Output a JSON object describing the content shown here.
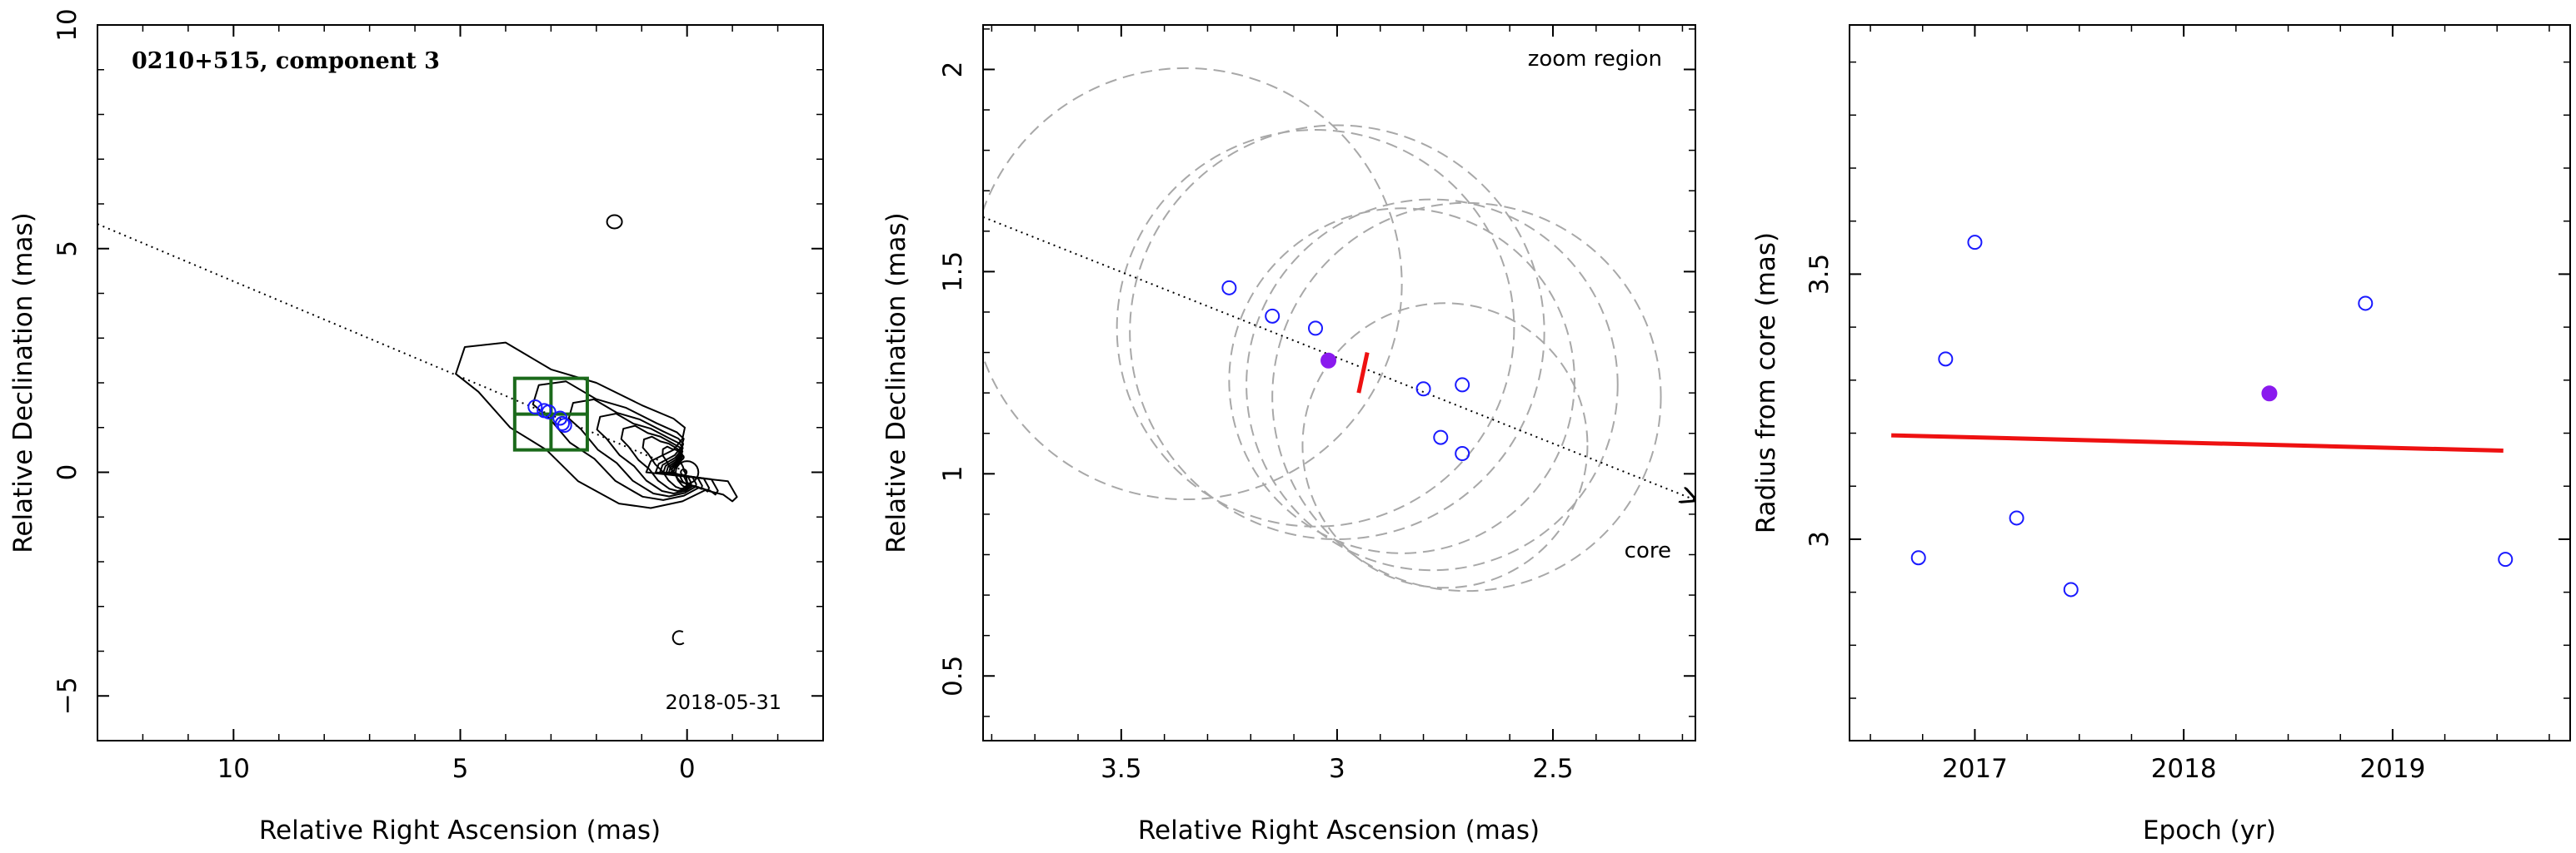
{
  "chart_data": [
    {
      "type": "scatter",
      "panel": "map",
      "title": "0210+515, component 3",
      "date_label": "2018-05-31",
      "xlabel": "Relative Right Ascension (mas)",
      "ylabel": "Relative Declination (mas)",
      "xlim": [
        13.0,
        -3.0
      ],
      "ylim": [
        -6.0,
        10.0
      ],
      "xticks": [
        10,
        5,
        0
      ],
      "xtick_labels": [
        "10",
        "5",
        "0"
      ],
      "yticks": [
        -5,
        0,
        5,
        10
      ],
      "ytick_labels": [
        "−5",
        "0",
        "5",
        "10"
      ],
      "jet_axis": [
        [
          13.0,
          5.55
        ],
        [
          0.0,
          0.0
        ]
      ],
      "zoom_box": {
        "x": [
          2.2,
          3.8
        ],
        "y": [
          0.5,
          2.1
        ]
      },
      "component_epochs": [
        {
          "x": 3.35,
          "y": 1.46
        },
        {
          "x": 3.15,
          "y": 1.38
        },
        {
          "x": 3.05,
          "y": 1.35
        },
        {
          "x": 2.8,
          "y": 1.21
        },
        {
          "x": 2.75,
          "y": 1.09
        },
        {
          "x": 2.7,
          "y": 1.05
        }
      ],
      "isolated_components": [
        {
          "x": 1.6,
          "y": 5.6
        },
        {
          "x": 0.2,
          "y": -3.7
        }
      ],
      "contour_levels": 9
    },
    {
      "type": "scatter",
      "panel": "zoom",
      "title": "",
      "annotations": [
        "zoom region",
        "core"
      ],
      "xlabel": "Relative Right Ascension (mas)",
      "ylabel": "Relative Declination (mas)",
      "xlim": [
        3.82,
        2.17
      ],
      "ylim": [
        0.34,
        2.11
      ],
      "xticks": [
        3.5,
        3.0,
        2.5
      ],
      "xtick_labels": [
        "3.5",
        "3",
        "2.5"
      ],
      "yticks": [
        0.5,
        1.0,
        1.5,
        2.0
      ],
      "ytick_labels": [
        "0.5",
        "1",
        "1.5",
        "2"
      ],
      "jet_axis": [
        [
          3.82,
          1.635
        ],
        [
          2.17,
          0.935
        ]
      ],
      "points": [
        {
          "x": 3.25,
          "y": 1.46
        },
        {
          "x": 3.15,
          "y": 1.39
        },
        {
          "x": 3.05,
          "y": 1.36
        },
        {
          "x": 2.8,
          "y": 1.21
        },
        {
          "x": 2.71,
          "y": 1.22
        },
        {
          "x": 2.76,
          "y": 1.09
        },
        {
          "x": 2.71,
          "y": 1.05
        }
      ],
      "current_epoch": {
        "x": 3.02,
        "y": 1.28
      },
      "fit_segment": [
        [
          2.93,
          1.3
        ],
        [
          2.95,
          1.2
        ]
      ],
      "error_circles": [
        {
          "cx": 3.35,
          "cy": 1.47,
          "r": 0.5
        },
        {
          "cx": 3.05,
          "cy": 1.36,
          "r": 0.46
        },
        {
          "cx": 3.0,
          "cy": 1.35,
          "r": 0.48
        },
        {
          "cx": 2.78,
          "cy": 1.22,
          "r": 0.43
        },
        {
          "cx": 2.7,
          "cy": 1.19,
          "r": 0.45
        },
        {
          "cx": 2.75,
          "cy": 1.07,
          "r": 0.33
        },
        {
          "cx": 2.85,
          "cy": 1.23,
          "r": 0.4
        }
      ]
    },
    {
      "type": "scatter",
      "panel": "radius",
      "title": "",
      "xlabel": "Epoch (yr)",
      "ylabel": "Radius from core (mas)",
      "xlim": [
        2016.4,
        2019.85
      ],
      "ylim": [
        2.62,
        3.97
      ],
      "xticks": [
        2017,
        2018,
        2019
      ],
      "xtick_labels": [
        "2017",
        "2018",
        "2019"
      ],
      "yticks": [
        3.0,
        3.5
      ],
      "ytick_labels": [
        "3",
        "3.5"
      ],
      "points": [
        {
          "x": 2016.73,
          "y": 2.965
        },
        {
          "x": 2016.86,
          "y": 3.34
        },
        {
          "x": 2017.0,
          "y": 3.56
        },
        {
          "x": 2017.2,
          "y": 3.04
        },
        {
          "x": 2017.46,
          "y": 2.905
        },
        {
          "x": 2018.87,
          "y": 3.445
        },
        {
          "x": 2019.54,
          "y": 2.962
        }
      ],
      "current_epoch": {
        "x": 2018.41,
        "y": 3.275
      },
      "fit_line": [
        [
          2016.6,
          3.196
        ],
        [
          2019.53,
          3.167
        ]
      ]
    }
  ],
  "colors": {
    "axis": "#000000",
    "contour": "#000000",
    "component_marker": "#1a1aff",
    "current_epoch": "#8a1aee",
    "fit": "#ee1111",
    "zoom_box": "#1b6a1b",
    "error_circle": "#a8a8a8",
    "jet_axis": "#000000"
  }
}
